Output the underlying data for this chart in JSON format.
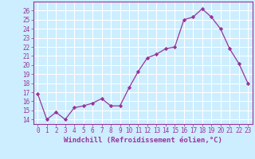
{
  "x": [
    0,
    1,
    2,
    3,
    4,
    5,
    6,
    7,
    8,
    9,
    10,
    11,
    12,
    13,
    14,
    15,
    16,
    17,
    18,
    19,
    20,
    21,
    22,
    23
  ],
  "y": [
    16.8,
    14.0,
    14.8,
    14.0,
    15.3,
    15.5,
    15.8,
    16.3,
    15.5,
    15.5,
    17.5,
    19.3,
    20.8,
    21.2,
    21.8,
    22.0,
    25.0,
    25.3,
    26.2,
    25.3,
    24.0,
    21.8,
    20.2,
    18.0
  ],
  "line_color": "#993399",
  "marker": "D",
  "marker_size": 2.2,
  "bg_color": "#cceeff",
  "grid_color": "#ffffff",
  "xlabel": "Windchill (Refroidissement éolien,°C)",
  "ylim": [
    13.5,
    27.0
  ],
  "xlim": [
    -0.5,
    23.5
  ],
  "yticks": [
    14,
    15,
    16,
    17,
    18,
    19,
    20,
    21,
    22,
    23,
    24,
    25,
    26
  ],
  "xticks": [
    0,
    1,
    2,
    3,
    4,
    5,
    6,
    7,
    8,
    9,
    10,
    11,
    12,
    13,
    14,
    15,
    16,
    17,
    18,
    19,
    20,
    21,
    22,
    23
  ],
  "tick_color": "#993399",
  "label_fontsize": 6.5,
  "tick_fontsize": 5.5,
  "line_width": 0.9
}
